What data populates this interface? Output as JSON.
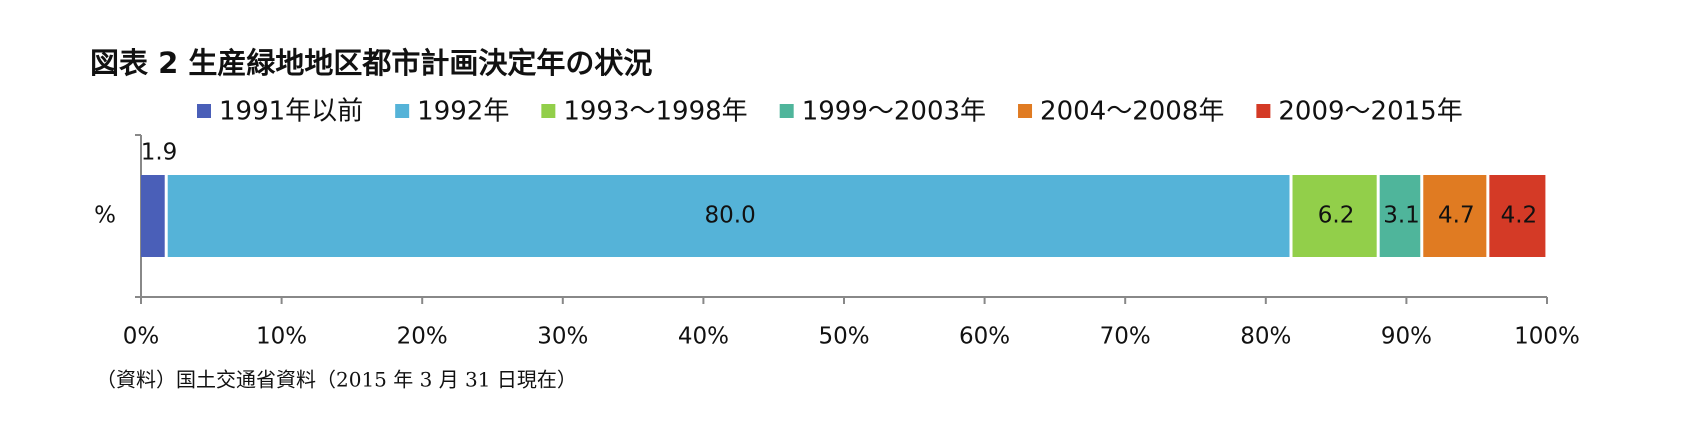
{
  "chart_data": {
    "type": "stacked_bar_horizontal",
    "title": "図表 2 生産緑地地区都市計画決定年の状況",
    "categories": [
      "%"
    ],
    "series": [
      {
        "name": "1991年以前",
        "color": "#4a5fb8",
        "values": [
          1.9
        ]
      },
      {
        "name": "1992年",
        "color": "#55b3d8",
        "values": [
          80.0
        ],
        "value_labels": [
          "80.0"
        ]
      },
      {
        "name": "1993～1998年",
        "color": "#92cf4a",
        "values": [
          6.2
        ]
      },
      {
        "name": "1999～2003年",
        "color": "#4fb59b",
        "values": [
          3.1
        ]
      },
      {
        "name": "2004～2008年",
        "color": "#e07b22",
        "values": [
          4.7
        ]
      },
      {
        "name": "2009～2015年",
        "color": "#d43a26",
        "values": [
          4.2
        ]
      }
    ],
    "xlim": [
      0,
      100
    ],
    "xticks": [
      {
        "value": 0,
        "label": "0%"
      },
      {
        "value": 10,
        "label": "10%"
      },
      {
        "value": 20,
        "label": "20%"
      },
      {
        "value": 30,
        "label": "30%"
      },
      {
        "value": 40,
        "label": "40%"
      },
      {
        "value": 50,
        "label": "50%"
      },
      {
        "value": 60,
        "label": "60%"
      },
      {
        "value": 70,
        "label": "70%"
      },
      {
        "value": 80,
        "label": "80%"
      },
      {
        "value": 90,
        "label": "90%"
      },
      {
        "value": 100,
        "label": "100%"
      }
    ],
    "source": "（資料）国土交通省資料（2015 年 3 月 31 日現在）"
  }
}
